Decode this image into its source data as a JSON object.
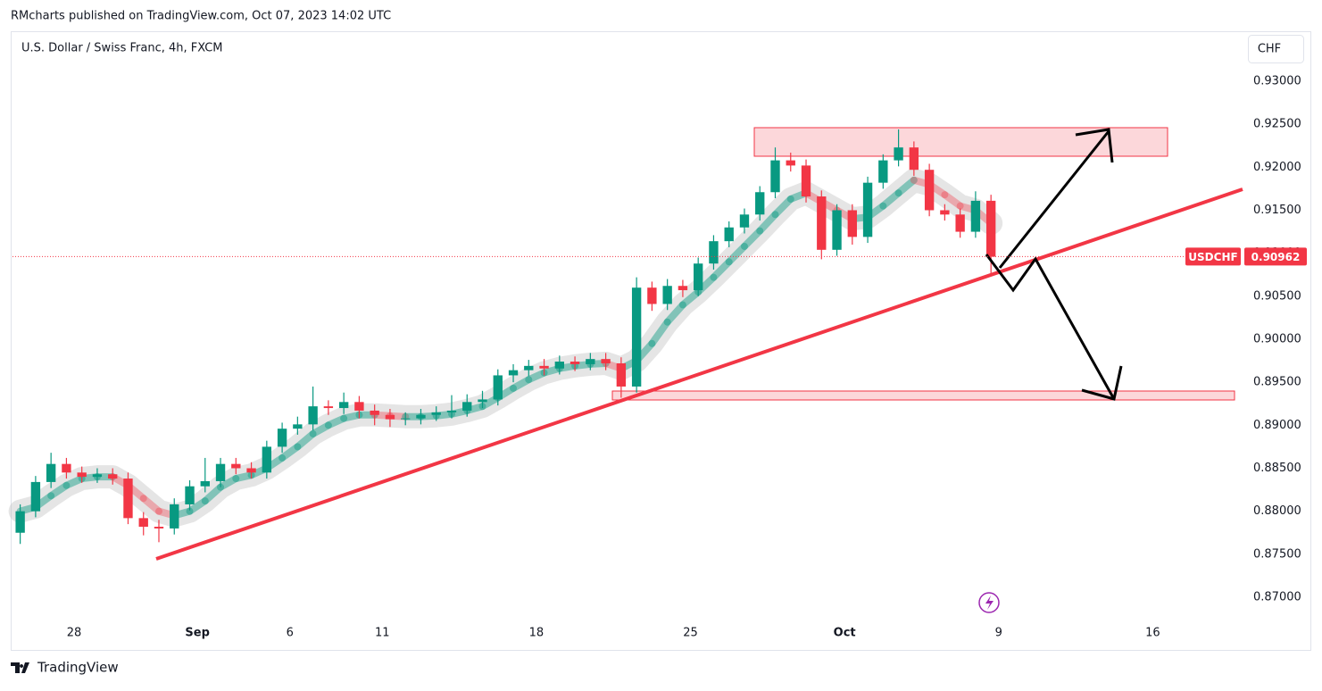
{
  "header": {
    "publisher": "RMcharts published on TradingView.com, Oct 07, 2023 14:02 UTC"
  },
  "chart_data": {
    "type": "candlestick",
    "title": "U.S. Dollar / Swiss Franc, 4h, FXCM",
    "currency": "CHF",
    "symbol": "USDCHF",
    "last_price": 0.90962,
    "up_color": "#089981",
    "down_color": "#f23645",
    "categories": [
      null,
      null,
      null,
      null,
      "28",
      null,
      null,
      null,
      null,
      null,
      null,
      null,
      "Sep",
      null,
      null,
      null,
      null,
      null,
      "6",
      null,
      null,
      null,
      null,
      null,
      "11",
      null,
      null,
      null,
      null,
      null,
      null,
      null,
      null,
      null,
      "18",
      null,
      null,
      null,
      null,
      null,
      null,
      null,
      null,
      null,
      "25",
      null,
      null,
      null,
      null,
      null,
      null,
      null,
      null,
      null,
      "Oct",
      null,
      null,
      null,
      null,
      null,
      null,
      null,
      null,
      null,
      "9",
      null,
      null,
      null,
      null,
      null,
      null,
      null,
      null,
      null,
      "16",
      null,
      null,
      null,
      null,
      null
    ],
    "open": [
      0.8775,
      0.88,
      0.8834,
      0.8855,
      0.8845,
      0.884,
      0.8843,
      0.8838,
      0.8792,
      0.8782,
      0.878,
      0.8808,
      0.8829,
      0.8835,
      0.8855,
      0.885,
      0.8845,
      0.8875,
      0.8896,
      0.8901,
      0.8922,
      0.892,
      0.8927,
      0.8917,
      0.8912,
      0.8907,
      0.8908,
      0.8912,
      0.8915,
      0.8917,
      0.8927,
      0.893,
      0.8958,
      0.8964,
      0.8969,
      0.8966,
      0.8974,
      0.8971,
      0.8977,
      0.8972,
      0.8945,
      0.906,
      0.9041,
      0.9062,
      0.9057,
      0.9088,
      0.9114,
      0.913,
      0.9145,
      0.9171,
      0.9208,
      0.9202,
      0.9166,
      0.9104,
      0.915,
      0.9119,
      0.9182,
      0.9208,
      0.9223,
      0.9197,
      0.915,
      0.9145,
      0.9125,
      0.9161,
      null,
      null,
      null,
      null,
      null,
      null,
      null,
      null,
      null,
      null,
      null,
      null,
      null,
      null,
      null,
      null
    ],
    "high": [
      0.8808,
      0.8841,
      0.8868,
      0.8862,
      0.8852,
      0.885,
      0.885,
      0.8845,
      0.8799,
      0.879,
      0.8815,
      0.8836,
      0.8862,
      0.8862,
      0.8862,
      0.8857,
      0.8882,
      0.8903,
      0.891,
      0.8945,
      0.8929,
      0.8938,
      0.8934,
      0.8924,
      0.8919,
      0.8915,
      0.8919,
      0.8922,
      0.8935,
      0.8936,
      0.894,
      0.8965,
      0.8971,
      0.8976,
      0.8977,
      0.8981,
      0.898,
      0.8984,
      0.8984,
      0.8979,
      0.9072,
      0.9067,
      0.907,
      0.9069,
      0.9095,
      0.9121,
      0.9137,
      0.9152,
      0.9178,
      0.9223,
      0.9217,
      0.9209,
      0.9173,
      0.9157,
      0.9157,
      0.9189,
      0.9215,
      0.9244,
      0.923,
      0.9204,
      0.9157,
      0.9152,
      0.9172,
      0.9168,
      null,
      null,
      null,
      null,
      null,
      null,
      null,
      null,
      null,
      null,
      null,
      null,
      null,
      null,
      null,
      null
    ],
    "low": [
      0.8762,
      0.8793,
      0.8827,
      0.8838,
      0.8833,
      0.8833,
      0.8831,
      0.8785,
      0.8772,
      0.8764,
      0.8773,
      0.8801,
      0.8822,
      0.8828,
      0.8843,
      0.8838,
      0.8838,
      0.8868,
      0.8889,
      0.8894,
      0.8912,
      0.8913,
      0.8908,
      0.89,
      0.8898,
      0.89,
      0.8901,
      0.8905,
      0.8908,
      0.891,
      0.892,
      0.8923,
      0.895,
      0.8957,
      0.8958,
      0.8959,
      0.8963,
      0.8964,
      0.8964,
      0.8932,
      0.8938,
      0.9033,
      0.9034,
      0.9049,
      0.905,
      0.9081,
      0.9107,
      0.9123,
      0.9138,
      0.9164,
      0.9195,
      0.9159,
      0.9093,
      0.9097,
      0.911,
      0.9112,
      0.9175,
      0.9201,
      0.919,
      0.9143,
      0.9138,
      0.9118,
      0.9118,
      0.9076,
      null,
      null,
      null,
      null,
      null,
      null,
      null,
      null,
      null,
      null,
      null,
      null,
      null,
      null,
      null,
      null
    ],
    "close": [
      0.88,
      0.8834,
      0.8855,
      0.8845,
      0.884,
      0.8843,
      0.8838,
      0.8792,
      0.8782,
      0.878,
      0.8808,
      0.8829,
      0.8835,
      0.8855,
      0.885,
      0.8845,
      0.8875,
      0.8896,
      0.8901,
      0.8922,
      0.892,
      0.8927,
      0.8917,
      0.8912,
      0.8907,
      0.8908,
      0.8912,
      0.8915,
      0.8917,
      0.8927,
      0.893,
      0.8958,
      0.8964,
      0.8969,
      0.8966,
      0.8974,
      0.8971,
      0.8977,
      0.8972,
      0.8945,
      0.906,
      0.9041,
      0.9062,
      0.9057,
      0.9088,
      0.9114,
      0.913,
      0.9145,
      0.9171,
      0.9208,
      0.9202,
      0.9166,
      0.9104,
      0.915,
      0.9119,
      0.9182,
      0.9208,
      0.9223,
      0.9197,
      0.915,
      0.9145,
      0.9125,
      0.9161,
      0.9096,
      null,
      null,
      null,
      null,
      null,
      null,
      null,
      null,
      null,
      null,
      null,
      null,
      null,
      null,
      null,
      null
    ],
    "overlay": {
      "values": [
        0.88,
        0.8805,
        0.8818,
        0.883,
        0.8838,
        0.884,
        0.884,
        0.883,
        0.8815,
        0.88,
        0.8795,
        0.88,
        0.8812,
        0.8828,
        0.8838,
        0.8842,
        0.885,
        0.8862,
        0.8875,
        0.889,
        0.89,
        0.8908,
        0.8912,
        0.8912,
        0.8911,
        0.891,
        0.891,
        0.8911,
        0.8913,
        0.8917,
        0.8922,
        0.8932,
        0.8943,
        0.8953,
        0.8961,
        0.8966,
        0.8969,
        0.8971,
        0.8972,
        0.8966,
        0.8975,
        0.8995,
        0.902,
        0.904,
        0.9055,
        0.9072,
        0.909,
        0.9108,
        0.9126,
        0.9145,
        0.9163,
        0.917,
        0.916,
        0.915,
        0.914,
        0.9142,
        0.9155,
        0.917,
        0.9185,
        0.918,
        0.9168,
        0.9155,
        0.915,
        0.9135,
        null,
        null,
        null,
        null,
        null,
        null,
        null,
        null,
        null,
        null,
        null,
        null,
        null,
        null,
        null,
        null
      ]
    },
    "ylim": [
      0.8673,
      0.9355
    ],
    "yticks": [
      {
        "value": 0.87,
        "label": "0.87000"
      },
      {
        "value": 0.875,
        "label": "0.87500"
      },
      {
        "value": 0.88,
        "label": "0.88000"
      },
      {
        "value": 0.885,
        "label": "0.88500"
      },
      {
        "value": 0.89,
        "label": "0.89000"
      },
      {
        "value": 0.895,
        "label": "0.89500"
      },
      {
        "value": 0.9,
        "label": "0.90000"
      },
      {
        "value": 0.905,
        "label": "0.90500"
      },
      {
        "value": 0.91,
        "label": "0.91000"
      },
      {
        "value": 0.915,
        "label": "0.91500"
      },
      {
        "value": 0.92,
        "label": "0.92000"
      },
      {
        "value": 0.925,
        "label": "0.92500"
      },
      {
        "value": 0.93,
        "label": "0.93000"
      }
    ],
    "grid": false
  },
  "footer": {
    "brand": "TradingView"
  }
}
